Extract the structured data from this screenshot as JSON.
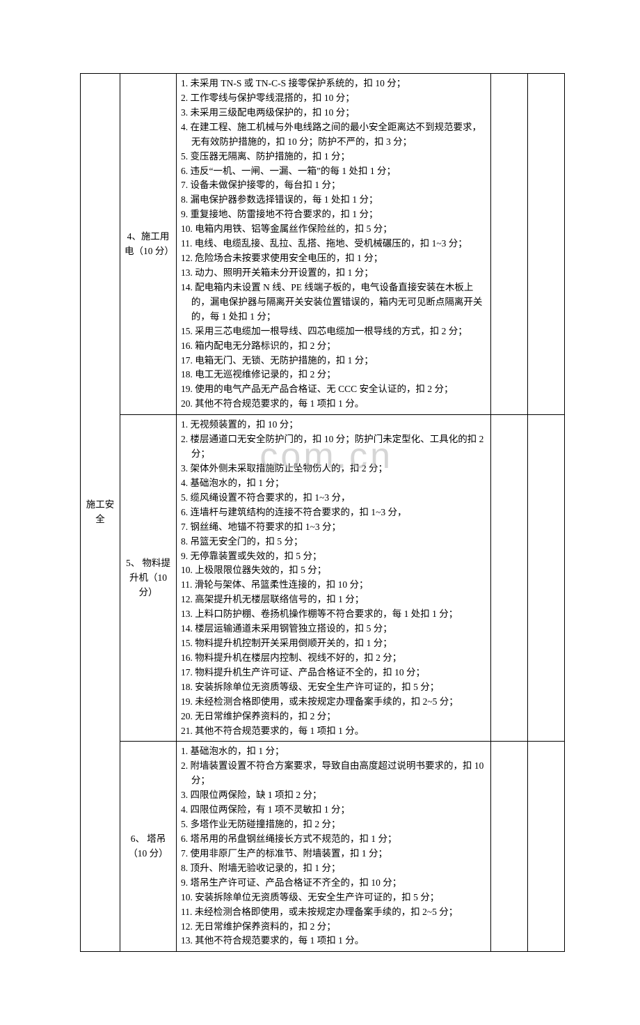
{
  "watermark": ".com.cn",
  "category_label": "施工安全",
  "rows": [
    {
      "item_title": "4、施工用电（10 分）",
      "lines": [
        "1. 未采用 TN-S 或 TN-C-S 接零保护系统的，扣 10 分；",
        "2. 工作零线与保护零线混搭的，扣 10 分；",
        "3. 未采用三级配电两级保护的，扣 10 分；",
        "4. 在建工程、施工机械与外电线路之间的最小安全距离达不到规范要求，无有效防护措施的，扣 10 分；防护不严的，扣 3 分；",
        "5. 变压器无隔离、防护措施的，扣 1 分；",
        "6. 违反“一机、一闸、一漏、一箱”的每 1 处扣 1 分；",
        "7. 设备未做保护接零的，每台扣 1 分；",
        "8. 漏电保护器参数选择错误的，每 1 处扣 1 分；",
        "9. 重复接地、防雷接地不符合要求的，扣 1 分；",
        "10. 电箱内用铁、铝等金属丝作保险丝的，扣 5 分；",
        "11. 电线、电缆乱接、乱拉、乱搭、拖地、受机械碾压的，扣 1~3 分；",
        "12. 危险场合未按要求使用安全电压的，扣 1 分；",
        "13. 动力、照明开关箱未分开设置的，扣 1 分；",
        "14. 配电箱内未设置 N 线、PE 线端子板的，电气设备直接安装在木板上的，漏电保护器与隔离开关安装位置错误的，箱内无可见断点隔离开关的，每 1 处扣 1 分；",
        "15. 采用三芯电缆加一根导线、四芯电缆加一根导线的方式，扣 2 分；",
        "16. 箱内配电无分路标识的，扣 2 分；",
        "17. 电箱无门、无锁、无防护措施的，扣 1 分；",
        "18. 电工无巡视维修记录的，扣 2 分；",
        "19. 使用的电气产品无产品合格证、无 CCC 安全认证的，扣 2 分；",
        "20. 其他不符合规范要求的，每 1 项扣 1 分。"
      ]
    },
    {
      "item_title": "5、 物料提升机（10 分）",
      "lines": [
        "1. 无视频装置的，扣 10 分；",
        "2. 楼层通道口无安全防护门的，扣 10 分；防护门未定型化、工具化的扣 2 分；",
        "3. 架体外侧未采取措施防止坠物伤人的，扣 2 分；",
        "4. 基础泡水的，扣 1 分；",
        "5. 缆风绳设置不符合要求的，扣 1~3 分，",
        "6. 连墙杆与建筑结构的连接不符合要求的，扣 1~3 分，",
        "7. 钢丝绳、地锚不符要求的扣 1~3 分；",
        "8. 吊篮无安全门的，扣 5 分；",
        "9. 无停靠装置或失效的，扣 5 分；",
        "10. 上极限限位器失效的，扣 5 分；",
        "11. 滑轮与架体、吊篮柔性连接的，扣 10 分；",
        "12. 高架提升机无楼层联络信号的，扣 1 分；",
        "13. 上料口防护棚、卷扬机操作棚等不符合要求的，每 1 处扣 1 分；",
        "14. 楼层运输通道未采用钢管独立搭设的，扣 5 分；",
        "15. 物料提升机控制开关采用倒顺开关的，扣 1 分；",
        "16. 物料提升机在楼层内控制、视线不好的，扣 2 分；",
        "17. 物料提升机生产许可证、产品合格证不全的，扣 10 分；",
        "18. 安装拆除单位无资质等级、无安全生产许可证的，扣 5 分；",
        "19. 未经检测合格即使用，或未按规定办理备案手续的，扣 2~5 分；",
        "20. 无日常维护保养资料的，扣 2 分；",
        "21. 其他不符合规范要求的，每 1 项扣 1 分。"
      ]
    },
    {
      "item_title": "6、 塔吊（10 分）",
      "lines": [
        "1. 基础泡水的，扣 1 分；",
        "2. 附墙装置设置不符合方案要求，导致自由高度超过说明书要求的，扣 10 分；",
        "3. 四限位两保险，缺 1 项扣 2 分；",
        "4. 四限位两保险，有 1 项不灵敏扣 1 分；",
        "5. 多塔作业无防碰撞措施的，扣 2 分；",
        "6. 塔吊用的吊盘钢丝绳接长方式不规范的，扣 1 分；",
        "7. 使用非原厂生产的标准节、附墙装置，扣 1 分；",
        "8. 顶升、附墙无验收记录的，扣 1 分；",
        "9. 塔吊生产许可证、产品合格证不齐全的，扣 10 分；",
        "10. 安装拆除单位无资质等级、无安全生产许可证的，扣 5 分；",
        "11. 未经检测合格即使用，或未按规定办理备案手续的，扣 2~5 分；",
        "12. 无日常维护保养资料的，扣 2 分；",
        "13. 其他不符合规范要求的，每 1 项扣 1 分。"
      ]
    }
  ]
}
